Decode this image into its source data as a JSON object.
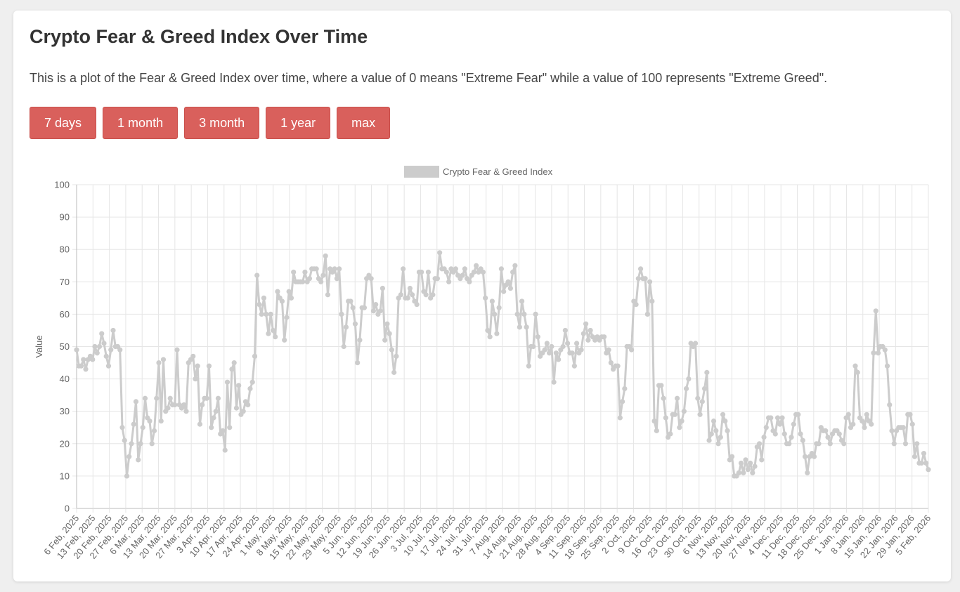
{
  "page": {
    "title": "Crypto Fear & Greed Index Over Time",
    "description": "This is a plot of the Fear & Greed Index over time, where a value of 0 means \"Extreme Fear\" while a value of 100 represents \"Extreme Greed\"."
  },
  "range_buttons": [
    "7 days",
    "1 month",
    "3 month",
    "1 year",
    "max"
  ],
  "colors": {
    "button": "#d9605c",
    "series": "#cccccc",
    "grid": "#e6e6e6",
    "axis_text": "#666666"
  },
  "chart_data": {
    "type": "line",
    "ylabel": "Value",
    "ylim": [
      0,
      100
    ],
    "yticks": [
      0,
      10,
      20,
      30,
      40,
      50,
      60,
      70,
      80,
      90,
      100
    ],
    "grid": true,
    "legend_placement": "top-center",
    "x_start": "6 Feb, 2025",
    "x_end": "5 Feb, 2026",
    "xticks": [
      "6 Feb, 2025",
      "13 Feb, 2025",
      "20 Feb, 2025",
      "27 Feb, 2025",
      "6 Mar, 2025",
      "13 Mar, 2025",
      "20 Mar, 2025",
      "27 Mar, 2025",
      "3 Apr, 2025",
      "10 Apr, 2025",
      "17 Apr, 2025",
      "24 Apr, 2025",
      "1 May, 2025",
      "8 May, 2025",
      "15 May, 2025",
      "22 May, 2025",
      "29 May, 2025",
      "5 Jun, 2025",
      "12 Jun, 2025",
      "19 Jun, 2025",
      "26 Jun, 2025",
      "3 Jul, 2025",
      "10 Jul, 2025",
      "17 Jul, 2025",
      "24 Jul, 2025",
      "31 Jul, 2025",
      "7 Aug, 2025",
      "14 Aug, 2025",
      "21 Aug, 2025",
      "28 Aug, 2025",
      "4 Sep, 2025",
      "11 Sep, 2025",
      "18 Sep, 2025",
      "25 Sep, 2025",
      "2 Oct, 2025",
      "9 Oct, 2025",
      "16 Oct, 2025",
      "23 Oct, 2025",
      "30 Oct, 2025",
      "6 Nov, 2025",
      "13 Nov, 2025",
      "20 Nov, 2025",
      "27 Nov, 2025",
      "4 Dec, 2025",
      "11 Dec, 2025",
      "18 Dec, 2025",
      "25 Dec, 2025",
      "1 Jan, 2026",
      "8 Jan, 2026",
      "15 Jan, 2026",
      "22 Jan, 2026",
      "29 Jan, 2026",
      "5 Feb, 2026"
    ],
    "series": [
      {
        "name": "Crypto Fear & Greed Index",
        "color": "#cccccc",
        "values": [
          49,
          44,
          44,
          46,
          43,
          46,
          47,
          46,
          50,
          48,
          50,
          54,
          51,
          47,
          44,
          49,
          55,
          50,
          50,
          49,
          25,
          21,
          10,
          16,
          20,
          26,
          33,
          15,
          20,
          25,
          34,
          28,
          27,
          20,
          24,
          34,
          45,
          27,
          46,
          30,
          31,
          34,
          32,
          32,
          49,
          32,
          31,
          32,
          30,
          45,
          46,
          47,
          40,
          44,
          26,
          32,
          34,
          34,
          44,
          25,
          28,
          30,
          34,
          23,
          24,
          18,
          39,
          25,
          43,
          45,
          31,
          38,
          29,
          30,
          33,
          32,
          37,
          39,
          47,
          72,
          63,
          60,
          65,
          60,
          54,
          60,
          55,
          53,
          67,
          65,
          64,
          52,
          59,
          67,
          65,
          73,
          70,
          70,
          70,
          70,
          73,
          70,
          71,
          74,
          74,
          74,
          71,
          70,
          72,
          78,
          66,
          74,
          73,
          74,
          71,
          74,
          60,
          50,
          56,
          64,
          64,
          62,
          57,
          45,
          52,
          62,
          62,
          71,
          72,
          71,
          61,
          63,
          60,
          61,
          68,
          52,
          57,
          54,
          49,
          42,
          47,
          65,
          66,
          74,
          65,
          65,
          68,
          66,
          64,
          63,
          73,
          73,
          67,
          66,
          73,
          65,
          66,
          71,
          71,
          79,
          74,
          74,
          73,
          70,
          74,
          73,
          74,
          72,
          71,
          72,
          74,
          71,
          70,
          72,
          73,
          75,
          73,
          74,
          73,
          65,
          55,
          53,
          64,
          60,
          54,
          62,
          74,
          67,
          69,
          70,
          68,
          73,
          75,
          60,
          56,
          64,
          60,
          56,
          44,
          50,
          50,
          60,
          53,
          47,
          48,
          49,
          51,
          48,
          50,
          39,
          48,
          46,
          49,
          50,
          55,
          51,
          48,
          48,
          44,
          51,
          48,
          49,
          54,
          57,
          52,
          55,
          53,
          52,
          53,
          52,
          53,
          53,
          48,
          49,
          45,
          43,
          44,
          44,
          28,
          33,
          37,
          50,
          50,
          49,
          64,
          63,
          71,
          74,
          71,
          71,
          60,
          70,
          64,
          27,
          24,
          38,
          38,
          34,
          28,
          22,
          23,
          29,
          29,
          34,
          25,
          27,
          30,
          37,
          40,
          51,
          50,
          51,
          34,
          29,
          33,
          37,
          42,
          21,
          23,
          27,
          24,
          20,
          22,
          29,
          27,
          24,
          15,
          16,
          10,
          10,
          11,
          14,
          11,
          15,
          12,
          14,
          11,
          13,
          19,
          20,
          15,
          22,
          25,
          28,
          28,
          24,
          23,
          28,
          26,
          28,
          23,
          20,
          20,
          22,
          26,
          29,
          29,
          23,
          21,
          16,
          11,
          16,
          17,
          16,
          20,
          20,
          25,
          24,
          24,
          22,
          20,
          23,
          24,
          24,
          23,
          21,
          20,
          28,
          29,
          25,
          26,
          44,
          42,
          28,
          27,
          25,
          29,
          27,
          26,
          48,
          61,
          48,
          50,
          50,
          49,
          44,
          32,
          24,
          20,
          24,
          25,
          25,
          25,
          20,
          29,
          29,
          26,
          16,
          20,
          14,
          14,
          17,
          14,
          12
        ]
      }
    ]
  }
}
